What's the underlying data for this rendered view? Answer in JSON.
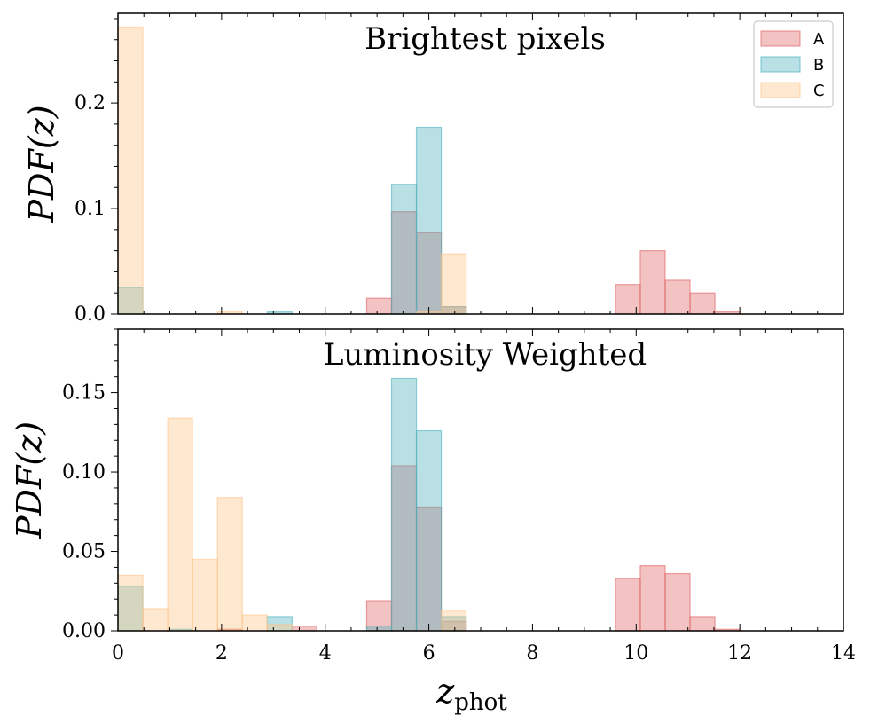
{
  "chart_data": [
    {
      "type": "histogram",
      "title": "Brightest pixels",
      "xlabel": "",
      "ylabel": "PDF(z)",
      "xlim": [
        0,
        14
      ],
      "ylim": [
        0,
        0.285
      ],
      "yticks": [
        0.0,
        0.1,
        0.2
      ],
      "ytick_labels": [
        "0.0",
        "0.1",
        "0.2"
      ],
      "yminor_step": 0.02,
      "xticks": [
        0,
        2,
        4,
        6,
        8,
        10,
        12,
        14
      ],
      "xminor_step": 0.5,
      "show_xtick_labels": false,
      "bin_width": 0.48,
      "series": [
        {
          "name": "A",
          "color": "#e06666",
          "bins": [
            [
              4.8,
              0.015
            ],
            [
              5.28,
              0.097
            ],
            [
              5.76,
              0.077
            ],
            [
              6.24,
              0.007
            ],
            [
              9.6,
              0.028
            ],
            [
              10.08,
              0.06
            ],
            [
              10.56,
              0.032
            ],
            [
              11.04,
              0.02
            ],
            [
              11.52,
              0.002
            ]
          ]
        },
        {
          "name": "B",
          "color": "#4fb3bf",
          "bins": [
            [
              0.0,
              0.025
            ],
            [
              2.88,
              0.002
            ],
            [
              5.28,
              0.123
            ],
            [
              5.76,
              0.177
            ],
            [
              6.24,
              0.007
            ]
          ]
        },
        {
          "name": "C",
          "color": "#ffc58a",
          "bins": [
            [
              0.0,
              0.272
            ],
            [
              1.92,
              0.002
            ],
            [
              5.76,
              0.002
            ],
            [
              6.24,
              0.057
            ]
          ]
        }
      ]
    },
    {
      "type": "histogram",
      "title": "Luminosity Weighted",
      "xlabel": "z_phot",
      "ylabel": "PDF(z)",
      "xlim": [
        0,
        14
      ],
      "ylim": [
        0,
        0.19
      ],
      "yticks": [
        0.0,
        0.05,
        0.1,
        0.15
      ],
      "ytick_labels": [
        "0.00",
        "0.05",
        "0.10",
        "0.15"
      ],
      "yminor_step": 0.01,
      "xticks": [
        0,
        2,
        4,
        6,
        8,
        10,
        12,
        14
      ],
      "xtick_labels": [
        "0",
        "2",
        "4",
        "6",
        "8",
        "10",
        "12",
        "14"
      ],
      "xminor_step": 0.5,
      "show_xtick_labels": true,
      "bin_width": 0.48,
      "series": [
        {
          "name": "A",
          "color": "#e06666",
          "bins": [
            [
              1.92,
              0.001
            ],
            [
              3.36,
              0.003
            ],
            [
              4.8,
              0.019
            ],
            [
              5.28,
              0.104
            ],
            [
              5.76,
              0.078
            ],
            [
              6.24,
              0.006
            ],
            [
              9.6,
              0.033
            ],
            [
              10.08,
              0.041
            ],
            [
              10.56,
              0.036
            ],
            [
              11.04,
              0.009
            ],
            [
              11.52,
              0.001
            ]
          ]
        },
        {
          "name": "B",
          "color": "#4fb3bf",
          "bins": [
            [
              0.0,
              0.028
            ],
            [
              0.96,
              0.001
            ],
            [
              2.88,
              0.009
            ],
            [
              4.8,
              0.003
            ],
            [
              5.28,
              0.159
            ],
            [
              5.76,
              0.126
            ],
            [
              6.24,
              0.009
            ]
          ]
        },
        {
          "name": "C",
          "color": "#ffc58a",
          "bins": [
            [
              0.0,
              0.035
            ],
            [
              0.48,
              0.014
            ],
            [
              0.96,
              0.134
            ],
            [
              1.44,
              0.045
            ],
            [
              1.92,
              0.084
            ],
            [
              2.4,
              0.01
            ],
            [
              2.88,
              0.004
            ],
            [
              6.24,
              0.013
            ]
          ]
        }
      ]
    }
  ],
  "legend": {
    "position": "top-right",
    "entries": [
      {
        "label": "A",
        "color": "#e06666"
      },
      {
        "label": "B",
        "color": "#4fb3bf"
      },
      {
        "label": "C",
        "color": "#ffc58a"
      }
    ]
  }
}
